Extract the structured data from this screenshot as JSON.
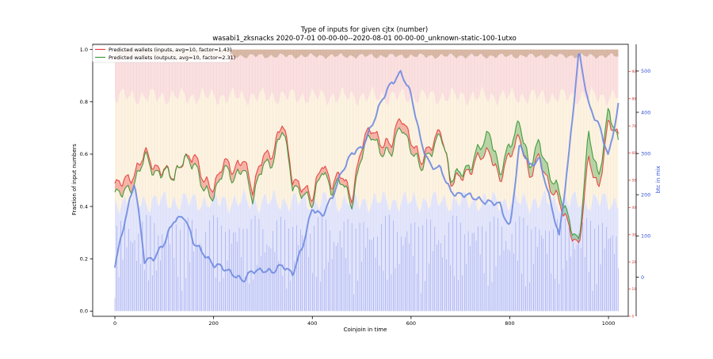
{
  "chart_data": {
    "type": "line",
    "title": "Type of inputs for given cjtx (number)",
    "subtitle": "wasabi1_zksnacks 2020-07-01 00-00-00--2020-08-01 00-00-00_unknown-static-100-1utxo",
    "xlabel": "Coinjoin in time",
    "ylabel": "Fraction of input numbers",
    "y2label": "btc in mix",
    "xlim": [
      -45,
      1040
    ],
    "ylim": [
      -0.02,
      1.02
    ],
    "y2lim": [
      -95,
      565
    ],
    "y3lim": [
      0,
      100
    ],
    "x_ticks": [
      0,
      200,
      400,
      600,
      800,
      1000
    ],
    "y_ticks": [
      0.0,
      0.2,
      0.4,
      0.6,
      0.8,
      1.0
    ],
    "y2_ticks": [
      0,
      100,
      200,
      300,
      400,
      500
    ],
    "y3_ticks": [
      0,
      10,
      20,
      30,
      40,
      50,
      60,
      70,
      80,
      90
    ],
    "grid": false,
    "legend_position": "top-left",
    "colors": {
      "inputs": "#e8413e",
      "outputs": "#3a9a3a",
      "btc": "#6f8be0",
      "band_blue": "#e3e6fb",
      "band_cream": "#fdf3df",
      "band_pink": "#fbe0df",
      "band_brown": "#d9b8a4",
      "bars": "#3c4ee8",
      "right_axis_red": "#d63a2f",
      "right_axis_blue": "#3553d6"
    },
    "series": [
      {
        "name": "Predicted wallets (inputs, avg=10, factor=1.43)",
        "x": [
          0,
          20,
          40,
          60,
          80,
          100,
          120,
          140,
          160,
          180,
          200,
          220,
          240,
          260,
          280,
          300,
          320,
          340,
          360,
          380,
          400,
          420,
          440,
          460,
          480,
          500,
          520,
          540,
          560,
          580,
          600,
          620,
          640,
          660,
          680,
          700,
          720,
          740,
          760,
          780,
          800,
          820,
          840,
          860,
          880,
          900,
          920,
          940,
          960,
          980,
          1000,
          1020
        ],
        "values": [
          0.47,
          0.5,
          0.53,
          0.6,
          0.55,
          0.55,
          0.5,
          0.59,
          0.6,
          0.49,
          0.48,
          0.57,
          0.53,
          0.6,
          0.45,
          0.6,
          0.61,
          0.72,
          0.51,
          0.48,
          0.42,
          0.58,
          0.48,
          0.52,
          0.44,
          0.63,
          0.7,
          0.65,
          0.63,
          0.75,
          0.66,
          0.56,
          0.64,
          0.7,
          0.48,
          0.53,
          0.53,
          0.59,
          0.62,
          0.49,
          0.6,
          0.68,
          0.5,
          0.6,
          0.48,
          0.41,
          0.33,
          0.24,
          0.58,
          0.47,
          0.72,
          0.66
        ]
      },
      {
        "name": "Predicted wallets (outputs, avg=10, factor=2.31)",
        "x": [
          0,
          20,
          40,
          60,
          80,
          100,
          120,
          140,
          160,
          180,
          200,
          220,
          240,
          260,
          280,
          300,
          320,
          340,
          360,
          380,
          400,
          420,
          440,
          460,
          480,
          500,
          520,
          540,
          560,
          580,
          600,
          620,
          640,
          660,
          680,
          700,
          720,
          740,
          760,
          780,
          800,
          820,
          840,
          860,
          880,
          900,
          920,
          940,
          960,
          980,
          1000,
          1020
        ],
        "values": [
          0.44,
          0.46,
          0.5,
          0.59,
          0.53,
          0.55,
          0.5,
          0.6,
          0.57,
          0.46,
          0.45,
          0.55,
          0.5,
          0.57,
          0.42,
          0.57,
          0.58,
          0.7,
          0.49,
          0.46,
          0.4,
          0.56,
          0.46,
          0.5,
          0.42,
          0.6,
          0.68,
          0.62,
          0.6,
          0.72,
          0.63,
          0.54,
          0.62,
          0.69,
          0.5,
          0.55,
          0.55,
          0.63,
          0.7,
          0.52,
          0.64,
          0.74,
          0.54,
          0.66,
          0.53,
          0.45,
          0.36,
          0.26,
          0.68,
          0.52,
          0.77,
          0.64
        ]
      },
      {
        "name": "",
        "axis": "right",
        "x": [
          0,
          20,
          40,
          60,
          80,
          100,
          120,
          140,
          160,
          180,
          200,
          220,
          240,
          260,
          280,
          300,
          320,
          340,
          360,
          380,
          400,
          420,
          440,
          460,
          480,
          500,
          520,
          540,
          560,
          580,
          600,
          620,
          640,
          660,
          680,
          700,
          720,
          740,
          760,
          780,
          800,
          820,
          840,
          860,
          880,
          900,
          920,
          940,
          960,
          980,
          1000,
          1020
        ],
        "values": [
          27,
          140,
          230,
          40,
          50,
          80,
          140,
          150,
          80,
          60,
          30,
          20,
          10,
          -10,
          15,
          20,
          10,
          30,
          10,
          70,
          170,
          150,
          190,
          260,
          300,
          310,
          370,
          425,
          470,
          500,
          440,
          330,
          270,
          260,
          210,
          200,
          195,
          190,
          180,
          175,
          120,
          320,
          270,
          290,
          190,
          100,
          300,
          545,
          420,
          370,
          290,
          420
        ]
      }
    ]
  }
}
